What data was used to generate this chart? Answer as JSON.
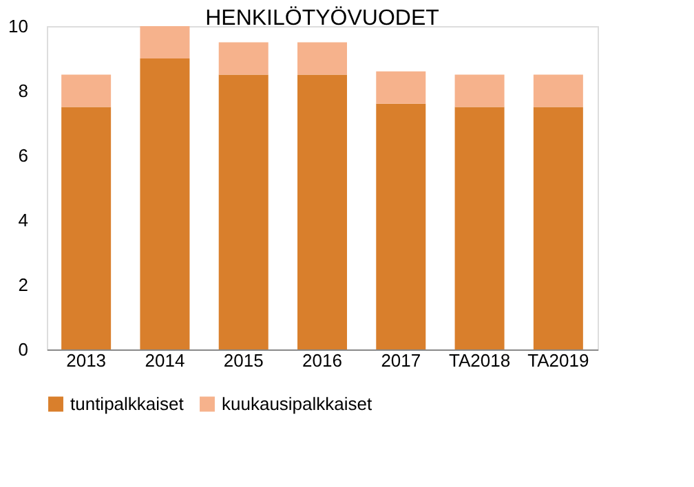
{
  "chart_data": {
    "type": "bar",
    "title": "HENKILÖTYÖVUODET",
    "stacked": true,
    "categories": [
      "2013",
      "2014",
      "2015",
      "2016",
      "2017",
      "TA2018",
      "TA2019"
    ],
    "series": [
      {
        "name": "tuntipalkkaiset",
        "color": "#d97f2c",
        "values": [
          7.5,
          9,
          8.5,
          8.5,
          7.6,
          7.5,
          7.5
        ]
      },
      {
        "name": "kuukausipalkkaiset",
        "color": "#f6b28c",
        "values": [
          1,
          1,
          1,
          1,
          1,
          1,
          1
        ]
      }
    ],
    "ylim": [
      0,
      10
    ],
    "yticks": [
      0,
      2,
      4,
      6,
      8,
      10
    ],
    "grid": false,
    "legend": "bottom"
  }
}
